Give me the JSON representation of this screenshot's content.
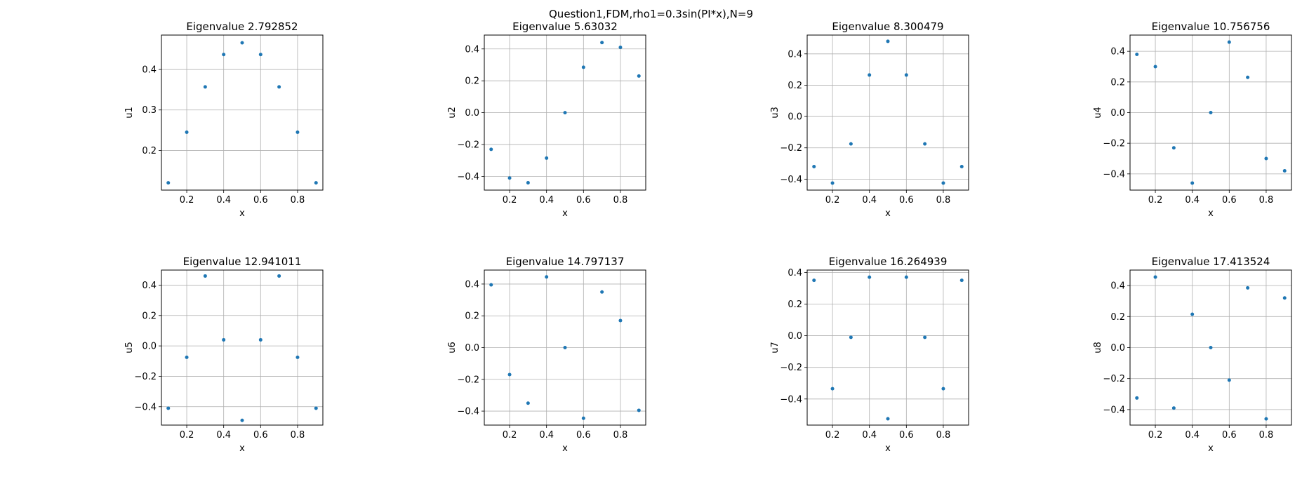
{
  "suptitle": "Question1,FDM,rho1=0.3sin(PI*x),N=9",
  "colors": {
    "points": "#1f77b4",
    "grid": "#b0b0b0",
    "axes": "#000000"
  },
  "chart_data": [
    {
      "type": "scatter",
      "title": "Eigenvalue 2.792852",
      "xlabel": "x",
      "ylabel": "u1",
      "xlim": [
        0.063,
        0.937
      ],
      "ylim": [
        0.102,
        0.485
      ],
      "xticks": [
        0.2,
        0.4,
        0.6,
        0.8
      ],
      "xticklabels": [
        "0.2",
        "0.4",
        "0.6",
        "0.8"
      ],
      "yticks": [
        0.2,
        0.3,
        0.4
      ],
      "yticklabels": [
        "0.2",
        "0.3",
        "0.4"
      ],
      "grid": true,
      "x": [
        0.1,
        0.2,
        0.3,
        0.4,
        0.5,
        0.6,
        0.7,
        0.8,
        0.9
      ],
      "y": [
        0.12,
        0.245,
        0.357,
        0.437,
        0.466,
        0.437,
        0.357,
        0.245,
        0.12
      ]
    },
    {
      "type": "scatter",
      "title": "Eigenvalue 5.63032",
      "xlabel": "x",
      "ylabel": "u2",
      "xlim": [
        0.063,
        0.937
      ],
      "ylim": [
        -0.486,
        0.487
      ],
      "xticks": [
        0.2,
        0.4,
        0.6,
        0.8
      ],
      "xticklabels": [
        "0.2",
        "0.4",
        "0.6",
        "0.8"
      ],
      "yticks": [
        -0.4,
        -0.2,
        0.0,
        0.2,
        0.4
      ],
      "yticklabels": [
        "−0.4",
        "−0.2",
        "0.0",
        "0.2",
        "0.4"
      ],
      "grid": true,
      "x": [
        0.1,
        0.2,
        0.3,
        0.4,
        0.5,
        0.6,
        0.7,
        0.8,
        0.9
      ],
      "y": [
        -0.23,
        -0.41,
        -0.44,
        -0.285,
        0.0,
        0.285,
        0.44,
        0.41,
        0.23
      ]
    },
    {
      "type": "scatter",
      "title": "Eigenvalue 8.300479",
      "xlabel": "x",
      "ylabel": "u3",
      "xlim": [
        0.063,
        0.937
      ],
      "ylim": [
        -0.47,
        0.52
      ],
      "xticks": [
        0.2,
        0.4,
        0.6,
        0.8
      ],
      "xticklabels": [
        "0.2",
        "0.4",
        "0.6",
        "0.8"
      ],
      "yticks": [
        -0.4,
        -0.2,
        0.0,
        0.2,
        0.4
      ],
      "yticklabels": [
        "−0.4",
        "−0.2",
        "0.0",
        "0.2",
        "0.4"
      ],
      "grid": true,
      "x": [
        0.1,
        0.2,
        0.3,
        0.4,
        0.5,
        0.6,
        0.7,
        0.8,
        0.9
      ],
      "y": [
        -0.32,
        -0.425,
        -0.175,
        0.265,
        0.48,
        0.265,
        -0.175,
        -0.425,
        -0.32
      ]
    },
    {
      "type": "scatter",
      "title": "Eigenvalue 10.756756",
      "xlabel": "x",
      "ylabel": "u4",
      "xlim": [
        0.063,
        0.937
      ],
      "ylim": [
        -0.506,
        0.506
      ],
      "xticks": [
        0.2,
        0.4,
        0.6,
        0.8
      ],
      "xticklabels": [
        "0.2",
        "0.4",
        "0.6",
        "0.8"
      ],
      "yticks": [
        -0.4,
        -0.2,
        0.0,
        0.2,
        0.4
      ],
      "yticklabels": [
        "−0.4",
        "−0.2",
        "0.0",
        "0.2",
        "0.4"
      ],
      "grid": true,
      "x": [
        0.1,
        0.2,
        0.3,
        0.4,
        0.5,
        0.6,
        0.7,
        0.8,
        0.9
      ],
      "y": [
        0.38,
        0.3,
        -0.23,
        -0.46,
        0.0,
        0.46,
        0.23,
        -0.3,
        -0.38
      ]
    },
    {
      "type": "scatter",
      "title": "Eigenvalue 12.941011",
      "xlabel": "x",
      "ylabel": "u5",
      "xlim": [
        0.063,
        0.937
      ],
      "ylim": [
        -0.521,
        0.499
      ],
      "xticks": [
        0.2,
        0.4,
        0.6,
        0.8
      ],
      "xticklabels": [
        "0.2",
        "0.4",
        "0.6",
        "0.8"
      ],
      "yticks": [
        -0.4,
        -0.2,
        0.0,
        0.2,
        0.4
      ],
      "yticklabels": [
        "−0.4",
        "−0.2",
        "0.0",
        "0.2",
        "0.4"
      ],
      "grid": true,
      "x": [
        0.1,
        0.2,
        0.3,
        0.4,
        0.5,
        0.6,
        0.7,
        0.8,
        0.9
      ],
      "y": [
        -0.41,
        -0.075,
        0.46,
        0.04,
        -0.49,
        0.04,
        0.46,
        -0.075,
        -0.41
      ]
    },
    {
      "type": "scatter",
      "title": "Eigenvalue 14.797137",
      "xlabel": "x",
      "ylabel": "u6",
      "xlim": [
        0.063,
        0.937
      ],
      "ylim": [
        -0.488,
        0.488
      ],
      "xticks": [
        0.2,
        0.4,
        0.6,
        0.8
      ],
      "xticklabels": [
        "0.2",
        "0.4",
        "0.6",
        "0.8"
      ],
      "yticks": [
        -0.4,
        -0.2,
        0.0,
        0.2,
        0.4
      ],
      "yticklabels": [
        "−0.4",
        "−0.2",
        "0.0",
        "0.2",
        "0.4"
      ],
      "grid": true,
      "x": [
        0.1,
        0.2,
        0.3,
        0.4,
        0.5,
        0.6,
        0.7,
        0.8,
        0.9
      ],
      "y": [
        0.395,
        -0.17,
        -0.35,
        0.445,
        0.0,
        -0.445,
        0.35,
        0.17,
        -0.395
      ]
    },
    {
      "type": "scatter",
      "title": "Eigenvalue 16.264939",
      "xlabel": "x",
      "ylabel": "u7",
      "xlim": [
        0.063,
        0.937
      ],
      "ylim": [
        -0.565,
        0.415
      ],
      "xticks": [
        0.2,
        0.4,
        0.6,
        0.8
      ],
      "xticklabels": [
        "0.2",
        "0.4",
        "0.6",
        "0.8"
      ],
      "yticks": [
        -0.4,
        -0.2,
        0.0,
        0.2,
        0.4
      ],
      "yticklabels": [
        "−0.4",
        "−0.2",
        "0.0",
        "0.2",
        "0.4"
      ],
      "grid": true,
      "x": [
        0.1,
        0.2,
        0.3,
        0.4,
        0.5,
        0.6,
        0.7,
        0.8,
        0.9
      ],
      "y": [
        0.35,
        -0.335,
        -0.01,
        0.37,
        -0.525,
        0.37,
        -0.01,
        -0.335,
        0.35
      ]
    },
    {
      "type": "scatter",
      "title": "Eigenvalue 17.413524",
      "xlabel": "x",
      "ylabel": "u8",
      "xlim": [
        0.063,
        0.937
      ],
      "ylim": [
        -0.5,
        0.5
      ],
      "xticks": [
        0.2,
        0.4,
        0.6,
        0.8
      ],
      "xticklabels": [
        "0.2",
        "0.4",
        "0.6",
        "0.8"
      ],
      "yticks": [
        -0.4,
        -0.2,
        0.0,
        0.2,
        0.4
      ],
      "yticklabels": [
        "−0.4",
        "−0.2",
        "0.0",
        "0.2",
        "0.4"
      ],
      "grid": true,
      "x": [
        0.1,
        0.2,
        0.3,
        0.4,
        0.5,
        0.6,
        0.7,
        0.8,
        0.9
      ],
      "y": [
        -0.325,
        0.455,
        -0.39,
        0.215,
        0.0,
        -0.21,
        0.385,
        -0.46,
        0.32
      ]
    }
  ]
}
